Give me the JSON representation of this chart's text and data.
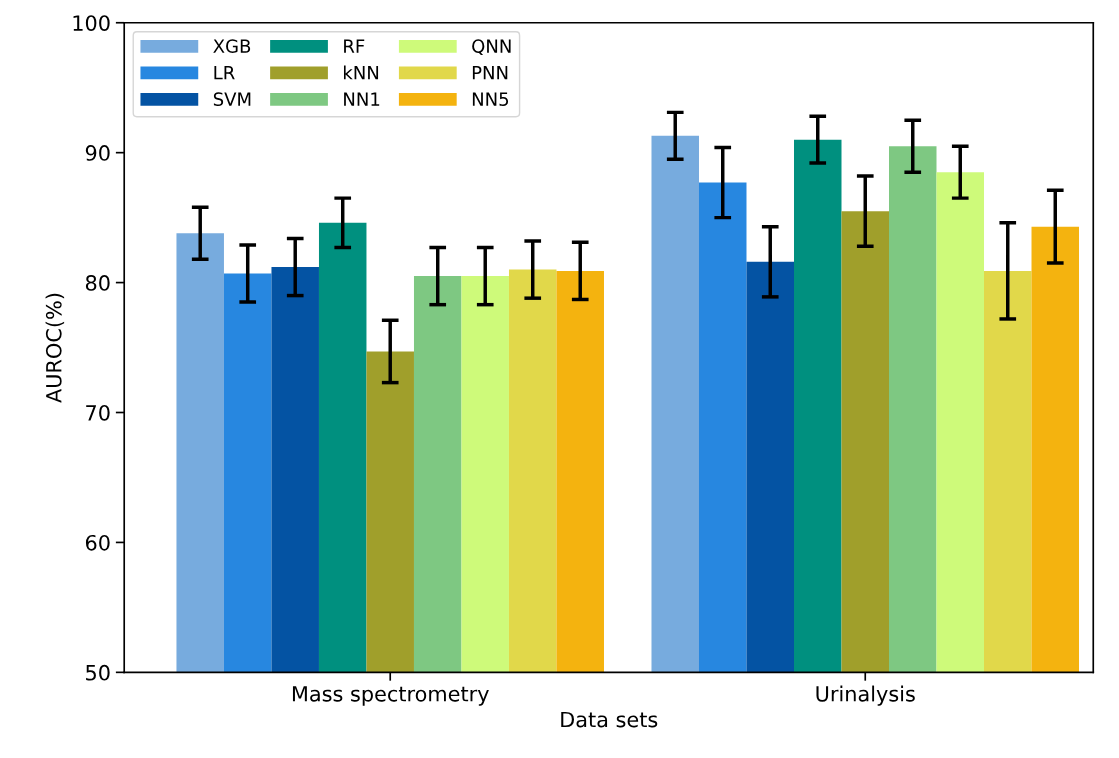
{
  "chart_data": {
    "type": "bar",
    "xlabel": "Data sets",
    "ylabel": "AUROC(%)",
    "categories": [
      "Mass spectrometry",
      "Urinalysis"
    ],
    "series": [
      {
        "name": "XGB",
        "color": "#77abde",
        "values": [
          83.8,
          91.3
        ],
        "errors": [
          2.0,
          1.8
        ]
      },
      {
        "name": "LR",
        "color": "#2787e0",
        "values": [
          80.7,
          87.7
        ],
        "errors": [
          2.2,
          2.7
        ]
      },
      {
        "name": "SVM",
        "color": "#0453a3",
        "values": [
          81.2,
          81.6
        ],
        "errors": [
          2.2,
          2.7
        ]
      },
      {
        "name": "RF",
        "color": "#00907f",
        "values": [
          84.6,
          91.0
        ],
        "errors": [
          1.9,
          1.8
        ]
      },
      {
        "name": "kNN",
        "color": "#a09f2b",
        "values": [
          74.7,
          85.5
        ],
        "errors": [
          2.4,
          2.7
        ]
      },
      {
        "name": "NN1",
        "color": "#7ec882",
        "values": [
          80.5,
          90.5
        ],
        "errors": [
          2.2,
          2.0
        ]
      },
      {
        "name": "QNN",
        "color": "#cefa7a",
        "values": [
          80.5,
          88.5
        ],
        "errors": [
          2.2,
          2.0
        ]
      },
      {
        "name": "PNN",
        "color": "#e1d84a",
        "values": [
          81.0,
          80.9
        ],
        "errors": [
          2.2,
          3.7
        ]
      },
      {
        "name": "NN5",
        "color": "#f4b30f",
        "values": [
          80.9,
          84.3
        ],
        "errors": [
          2.2,
          2.8
        ]
      }
    ],
    "ylim": [
      50,
      100
    ],
    "yticks": [
      50,
      60,
      70,
      80,
      90,
      100
    ],
    "grid": false,
    "legend": "top left"
  }
}
